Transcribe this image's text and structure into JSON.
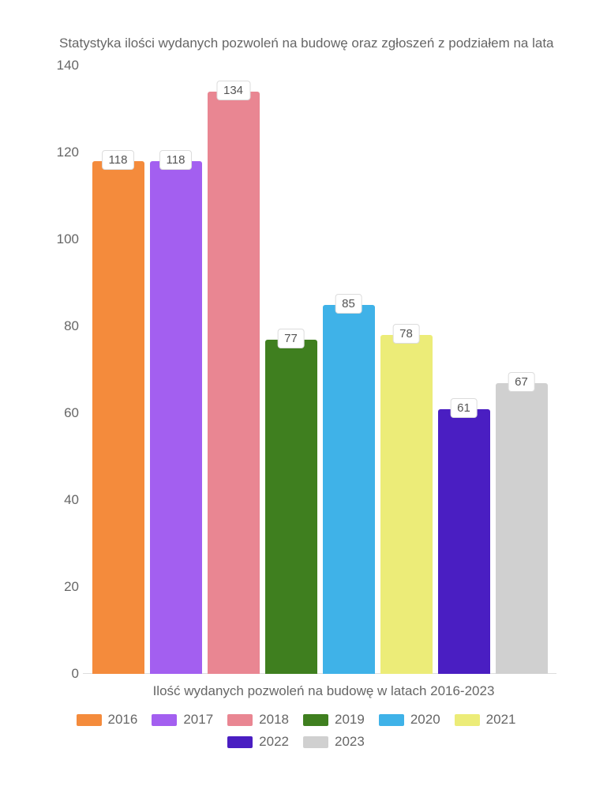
{
  "chart": {
    "type": "bar",
    "title": "Statystyka ilości wydanych pozwoleń na budowę oraz zgłoszeń z podziałem na lata",
    "xlabel": "Ilość wydanych pozwoleń na budowę w latach 2016-2023",
    "ylim_max": 140,
    "ytick_step": 20,
    "yticks": [
      0,
      20,
      40,
      60,
      80,
      100,
      120,
      140
    ],
    "background_color": "#ffffff",
    "text_color": "#666666",
    "label_fontsize": 17,
    "title_fontsize": 17,
    "value_label_bg": "#ffffff",
    "value_label_border": "#dcdcdc",
    "series": [
      {
        "year": "2016",
        "value": 118,
        "color": "#f48b3c"
      },
      {
        "year": "2017",
        "value": 118,
        "color": "#a35ff0"
      },
      {
        "year": "2018",
        "value": 134,
        "color": "#e98692"
      },
      {
        "year": "2019",
        "value": 77,
        "color": "#3f7f1f"
      },
      {
        "year": "2020",
        "value": 85,
        "color": "#3fb2e8"
      },
      {
        "year": "2021",
        "value": 78,
        "color": "#ecec78"
      },
      {
        "year": "2022",
        "value": 61,
        "color": "#4a1ec2"
      },
      {
        "year": "2023",
        "value": 67,
        "color": "#d0d0d0"
      }
    ]
  }
}
